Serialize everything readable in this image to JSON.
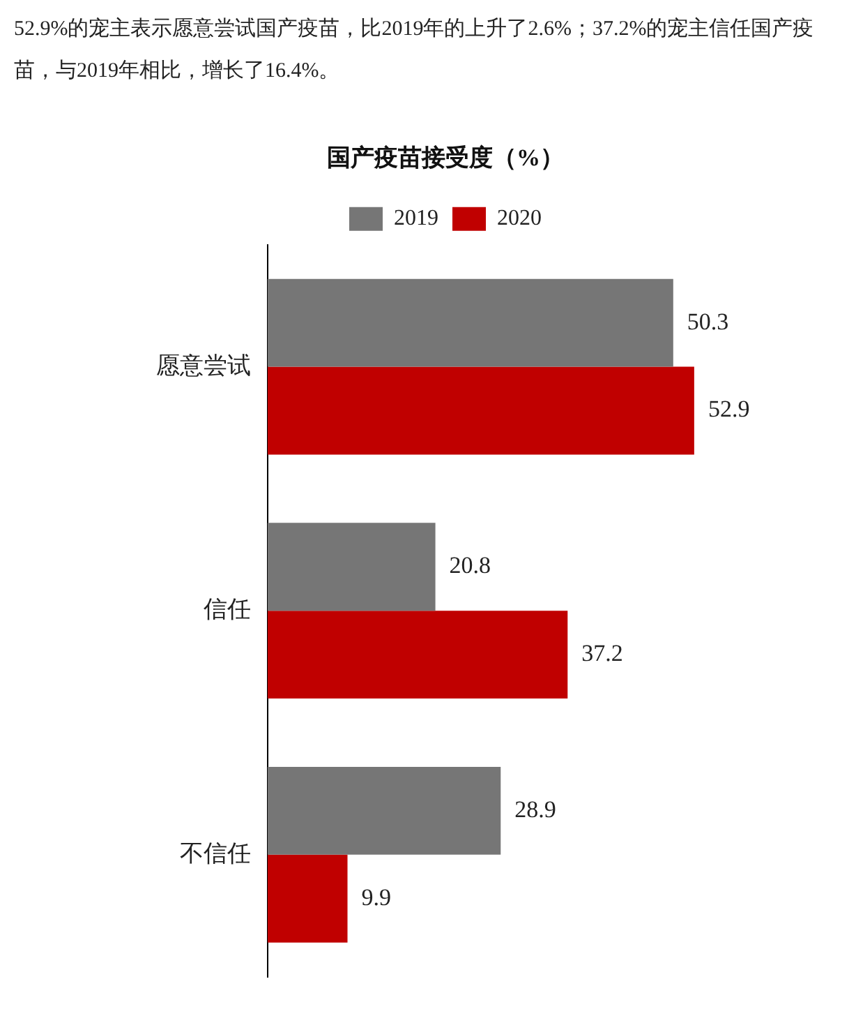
{
  "chart_data": {
    "type": "bar",
    "orientation": "horizontal",
    "title": "国产疫苗接受度（%）",
    "annotations": [
      "52.9%的宠主表示愿意尝试国产疫苗，比2019年的上升了2.6%；37.2%的宠主信任国产疫苗，与2019年相比，增长了16.4%。"
    ],
    "categories": [
      "愿意尝试",
      "信任",
      "不信任"
    ],
    "series": [
      {
        "name": "2019",
        "color": "#767676",
        "values": [
          50.3,
          20.8,
          28.9
        ]
      },
      {
        "name": "2020",
        "color": "#c00000",
        "values": [
          52.9,
          37.2,
          9.9
        ]
      }
    ],
    "data_labels": true,
    "legend": "top",
    "grid": false
  }
}
